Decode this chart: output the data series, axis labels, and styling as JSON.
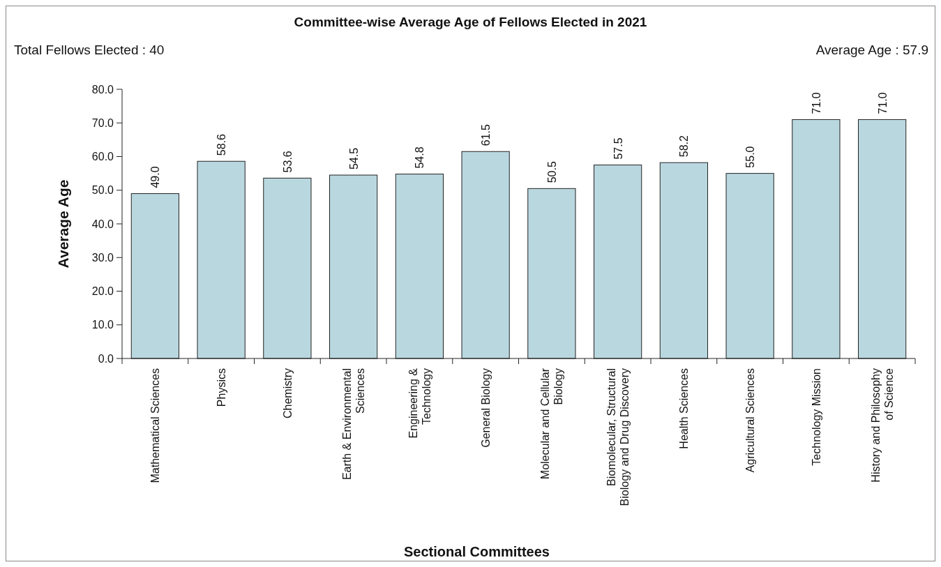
{
  "chart_data": {
    "type": "bar",
    "title": "Committee-wise Average Age of Fellows Elected in 2021",
    "xlabel": "Sectional Committees",
    "ylabel": "Average Age",
    "annotations": [
      "Total Fellows Elected : 40",
      "Average Age : 57.9"
    ],
    "categories": [
      "Mathematical Sciences",
      "Physics",
      "Chemistry",
      "Earth & Environmental\nSciences",
      "Engineering &\nTechnology",
      "General Biology",
      "Molecular and Cellular\nBiology",
      "Biomolecular, Structural\nBiology and Drug Discovery",
      "Health Sciences",
      "Agricultural Sciences",
      "Technology Mission",
      "History and Philosophy\nof Science"
    ],
    "values": [
      49.0,
      58.6,
      53.6,
      54.5,
      54.8,
      61.5,
      50.5,
      57.5,
      58.2,
      55.0,
      71.0,
      71.0
    ],
    "value_labels": [
      "49.0",
      "58.6",
      "53.6",
      "54.5",
      "54.8",
      "61.5",
      "50.5",
      "57.5",
      "58.2",
      "55.0",
      "71.0",
      "71.0"
    ],
    "color": "#b9d7df",
    "ylim": [
      0,
      80
    ],
    "yticks": [
      {
        "value": 0,
        "label": "0.0"
      },
      {
        "value": 10,
        "label": "10.0"
      },
      {
        "value": 20,
        "label": "20.0"
      },
      {
        "value": 30,
        "label": "30.0"
      },
      {
        "value": 40,
        "label": "40.0"
      },
      {
        "value": 50,
        "label": "50.0"
      },
      {
        "value": 60,
        "label": "60.0"
      },
      {
        "value": 70,
        "label": "70.0"
      },
      {
        "value": 80,
        "label": "80.0"
      }
    ]
  }
}
